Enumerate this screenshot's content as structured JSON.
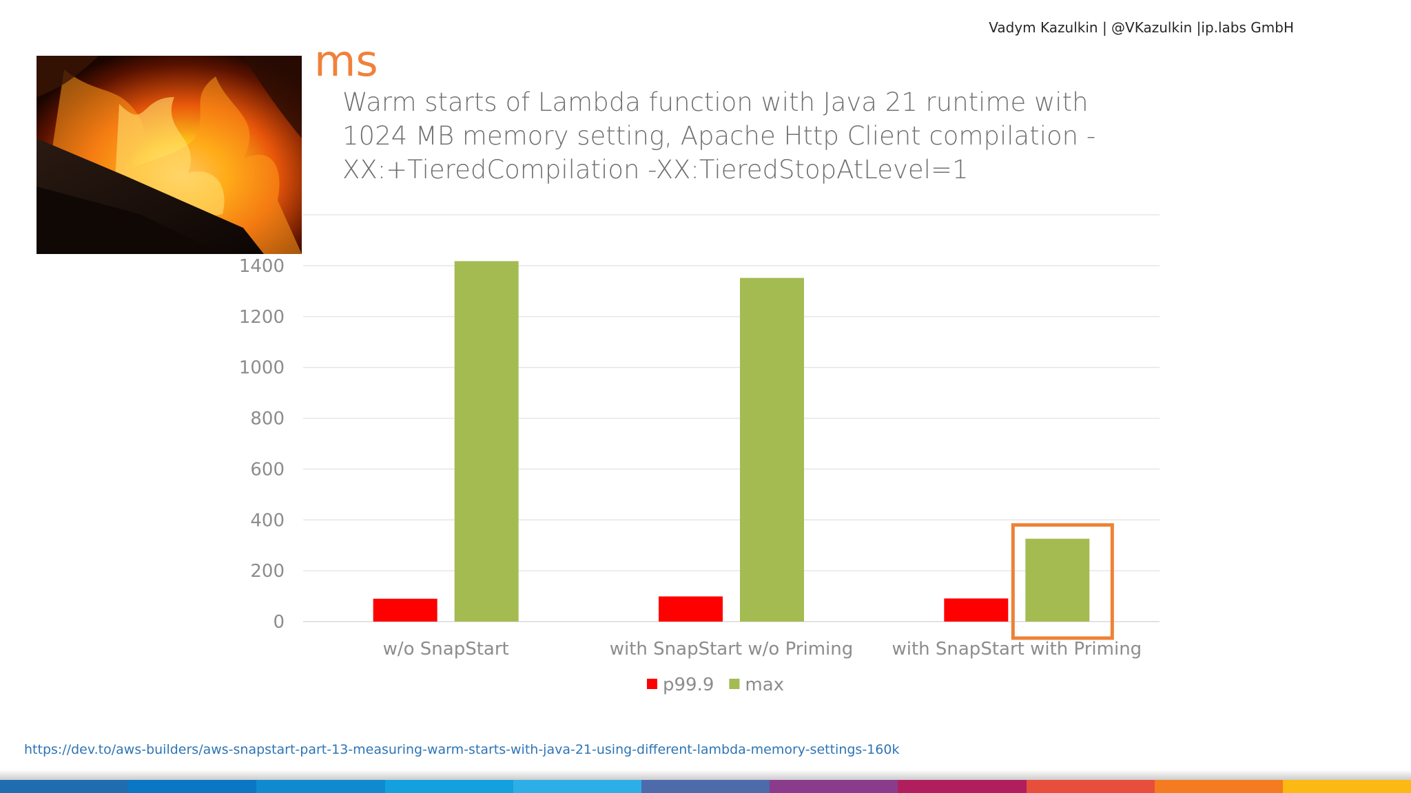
{
  "header": {
    "author": "Vadym Kazulkin | @VKazulkin |ip.labs GmbH"
  },
  "slide": {
    "unit_label": "ms",
    "title_lines": [
      "Warm starts of Lambda function with Java 21 runtime  with",
      "1024 MB memory setting, Apache Http Client compilation -",
      "XX:+TieredCompilation -XX:TieredStopAtLevel=1"
    ],
    "source_url": "https://dev.to/aws-builders/aws-snapstart-part-13-measuring-warm-starts-with-java-21-using-different-lambda-memory-settings-160k"
  },
  "chart_data": {
    "type": "bar",
    "title": "",
    "xlabel": "",
    "ylabel": "",
    "categories": [
      "w/o SnapStart",
      "with SnapStart w/o Priming",
      "with SnapStart with Priming"
    ],
    "series": [
      {
        "name": "p99.9",
        "values": [
          90,
          99,
          91
        ],
        "color": "#ff0000"
      },
      {
        "name": "max",
        "values": [
          1418,
          1352,
          326
        ],
        "color": "#a4bb52"
      }
    ],
    "ylim": [
      0,
      1400
    ],
    "yticks": [
      0,
      200,
      400,
      600,
      800,
      1000,
      1200,
      1400
    ],
    "grid": true,
    "legend_position": "bottom",
    "highlight": {
      "category_index": 2,
      "series": "max",
      "color": "#ee8235"
    }
  },
  "footer_colors": [
    "#1f6cb0",
    "#0b76c4",
    "#0f8ad0",
    "#12a0de",
    "#2eaee6",
    "#4d6aab",
    "#8b3b8c",
    "#b01e5e",
    "#e84e3c",
    "#f47b20",
    "#fcb813"
  ]
}
